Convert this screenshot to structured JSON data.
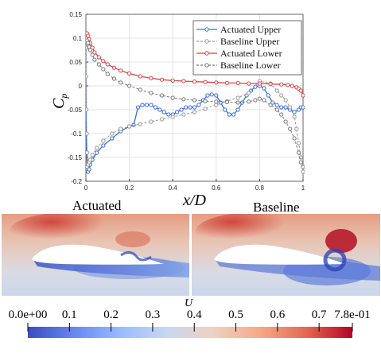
{
  "chart_data": {
    "type": "line",
    "title": "",
    "xlabel_main": "x",
    "xlabel_sub": "D",
    "ylabel_main": "C",
    "ylabel_sub": "p",
    "xlim": [
      0,
      1
    ],
    "ylim": [
      -0.2,
      0.15
    ],
    "x_ticks": [
      "0",
      "0.2",
      "0.4",
      "0.6",
      "0.8",
      "1"
    ],
    "y_ticks": [
      "-0.2",
      "-0.15",
      "-0.1",
      "-0.05",
      "0",
      "0.05",
      "0.1",
      "0.15"
    ],
    "grid": true,
    "legend_position": "top-right",
    "series": [
      {
        "name": "Actuated Upper",
        "color": "#3b6fd0",
        "linestyle": "solid",
        "x": [
          0,
          0,
          0.001,
          0.002,
          0.004,
          0.006,
          0.01,
          0.015,
          0.02,
          0.03,
          0.05,
          0.08,
          0.12,
          0.16,
          0.2,
          0.22,
          0.24,
          0.26,
          0.28,
          0.3,
          0.32,
          0.34,
          0.36,
          0.38,
          0.4,
          0.42,
          0.44,
          0.46,
          0.48,
          0.5,
          0.52,
          0.54,
          0.56,
          0.58,
          0.6,
          0.62,
          0.64,
          0.66,
          0.68,
          0.7,
          0.72,
          0.74,
          0.76,
          0.78,
          0.8,
          0.82,
          0.84,
          0.86,
          0.88,
          0.9,
          0.92,
          0.94,
          0.96,
          0.98,
          0.99,
          1.0
        ],
        "y": [
          0.1,
          0.02,
          -0.05,
          -0.1,
          -0.14,
          -0.17,
          -0.18,
          -0.175,
          -0.165,
          -0.155,
          -0.14,
          -0.125,
          -0.11,
          -0.095,
          -0.085,
          -0.082,
          -0.045,
          -0.04,
          -0.04,
          -0.04,
          -0.045,
          -0.05,
          -0.055,
          -0.06,
          -0.06,
          -0.055,
          -0.05,
          -0.045,
          -0.045,
          -0.045,
          -0.04,
          -0.03,
          -0.02,
          -0.018,
          -0.02,
          -0.035,
          -0.05,
          -0.06,
          -0.06,
          -0.05,
          -0.035,
          -0.02,
          -0.01,
          -0.002,
          0.0,
          -0.005,
          -0.02,
          -0.035,
          -0.04,
          -0.045,
          -0.045,
          -0.05,
          -0.055,
          -0.05,
          -0.045,
          -0.045
        ]
      },
      {
        "name": "Baseline Upper",
        "color": "#999999",
        "linestyle": "dashed",
        "x": [
          0,
          0.001,
          0.002,
          0.004,
          0.006,
          0.01,
          0.015,
          0.02,
          0.03,
          0.05,
          0.08,
          0.12,
          0.16,
          0.2,
          0.25,
          0.3,
          0.35,
          0.4,
          0.45,
          0.5,
          0.55,
          0.6,
          0.65,
          0.7,
          0.75,
          0.8,
          0.85,
          0.88,
          0.9,
          0.92,
          0.94,
          0.96,
          0.97,
          0.98,
          0.99,
          1.0
        ],
        "y": [
          0.08,
          0.02,
          -0.05,
          -0.1,
          -0.14,
          -0.165,
          -0.16,
          -0.155,
          -0.145,
          -0.13,
          -0.115,
          -0.1,
          -0.09,
          -0.085,
          -0.08,
          -0.075,
          -0.07,
          -0.065,
          -0.06,
          -0.055,
          -0.048,
          -0.04,
          -0.032,
          -0.025,
          -0.015,
          0.01,
          0.005,
          -0.01,
          -0.02,
          -0.03,
          -0.045,
          -0.065,
          -0.09,
          -0.12,
          -0.15,
          -0.18
        ]
      },
      {
        "name": "Actuated Lower",
        "color": "#d24545",
        "linestyle": "solid",
        "x": [
          0,
          0.002,
          0.005,
          0.01,
          0.015,
          0.02,
          0.03,
          0.04,
          0.06,
          0.08,
          0.1,
          0.13,
          0.16,
          0.2,
          0.25,
          0.3,
          0.35,
          0.4,
          0.45,
          0.5,
          0.55,
          0.6,
          0.65,
          0.7,
          0.75,
          0.8,
          0.85,
          0.9,
          0.93,
          0.95,
          0.97,
          0.98,
          0.99,
          1.0
        ],
        "y": [
          0.1,
          0.106,
          0.11,
          0.105,
          0.098,
          0.09,
          0.08,
          0.07,
          0.06,
          0.052,
          0.045,
          0.038,
          0.032,
          0.026,
          0.02,
          0.016,
          0.013,
          0.011,
          0.01,
          0.009,
          0.008,
          0.007,
          0.006,
          0.006,
          0.005,
          0.005,
          0.004,
          0.003,
          0.002,
          0.0,
          -0.003,
          -0.006,
          -0.01,
          -0.02
        ]
      },
      {
        "name": "Baseline Lower",
        "color": "#777777",
        "linestyle": "dashed",
        "x": [
          0,
          0.002,
          0.005,
          0.01,
          0.015,
          0.02,
          0.03,
          0.04,
          0.06,
          0.08,
          0.1,
          0.13,
          0.16,
          0.2,
          0.25,
          0.3,
          0.35,
          0.4,
          0.45,
          0.5,
          0.55,
          0.6,
          0.65,
          0.7,
          0.75,
          0.78,
          0.8,
          0.82,
          0.85,
          0.88,
          0.9,
          0.92,
          0.94,
          0.96,
          0.98,
          0.99,
          1.0
        ],
        "y": [
          0.08,
          0.09,
          0.095,
          0.09,
          0.082,
          0.075,
          0.065,
          0.055,
          0.045,
          0.035,
          0.025,
          0.015,
          0.007,
          0.0,
          -0.008,
          -0.015,
          -0.02,
          -0.025,
          -0.028,
          -0.03,
          -0.032,
          -0.033,
          -0.034,
          -0.035,
          -0.033,
          -0.03,
          -0.027,
          -0.03,
          -0.04,
          -0.05,
          -0.06,
          -0.075,
          -0.09,
          -0.11,
          -0.14,
          -0.16,
          -0.17
        ]
      }
    ]
  },
  "panels": {
    "left_title": "Actuated",
    "right_title": "Baseline"
  },
  "colorbar": {
    "label": "U",
    "tick_labels": [
      "0.0e+00",
      "0.1",
      "0.2",
      "0.3",
      "0.4",
      "0.5",
      "0.6",
      "0.7",
      "7.8e-01"
    ],
    "tick_values": [
      0,
      0.1,
      0.2,
      0.3,
      0.4,
      0.5,
      0.6,
      0.7,
      0.78
    ],
    "min": 0,
    "max": 0.78,
    "colormap": [
      "#3b4cc0",
      "#6788ee",
      "#9abbff",
      "#c9d7f0",
      "#edd1c2",
      "#f7a889",
      "#e26952",
      "#b40426"
    ]
  }
}
